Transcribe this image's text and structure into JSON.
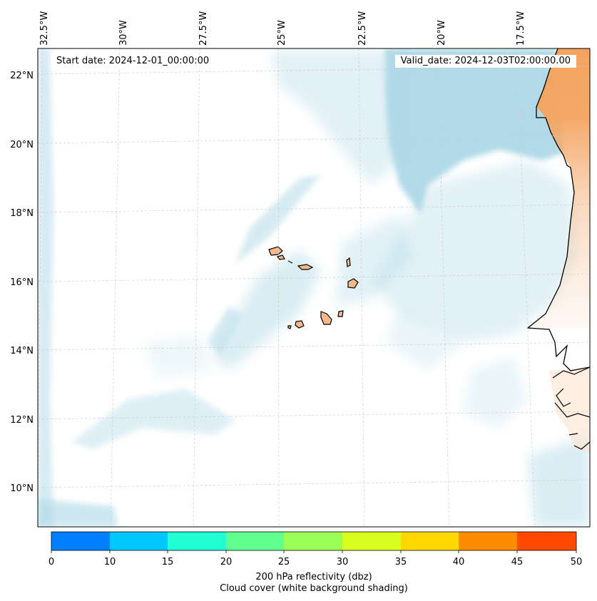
{
  "map": {
    "lon_labels": [
      "32.5°W",
      "30°W",
      "27.5°W",
      "25°W",
      "22.5°W",
      "20°W",
      "17.5°W"
    ],
    "lat_labels": [
      "22°N",
      "20°N",
      "18°N",
      "16°N",
      "14°N",
      "12°N",
      "10°N"
    ],
    "start_date": "Start date: 2024-12-01_00:00:00",
    "valid_date": "Valid_date: 2024-12-03T02:00:00.00",
    "colors": {
      "land": "#f4a460",
      "cloud": "#add8e6",
      "coast": "#000000",
      "grid": "#cccccc"
    }
  },
  "colorbar": {
    "ticks": [
      "0",
      "10",
      "15",
      "20",
      "25",
      "30",
      "35",
      "40",
      "45",
      "50"
    ],
    "colors": [
      "#0080ff",
      "#00c8ff",
      "#22ffd5",
      "#60ff90",
      "#9cff55",
      "#d8ff20",
      "#ffd800",
      "#ff8c00",
      "#ff4a00"
    ],
    "title_line1": "200 hPa reflectivity (dbz)",
    "title_line2": "Cloud cover (white background shading)"
  }
}
